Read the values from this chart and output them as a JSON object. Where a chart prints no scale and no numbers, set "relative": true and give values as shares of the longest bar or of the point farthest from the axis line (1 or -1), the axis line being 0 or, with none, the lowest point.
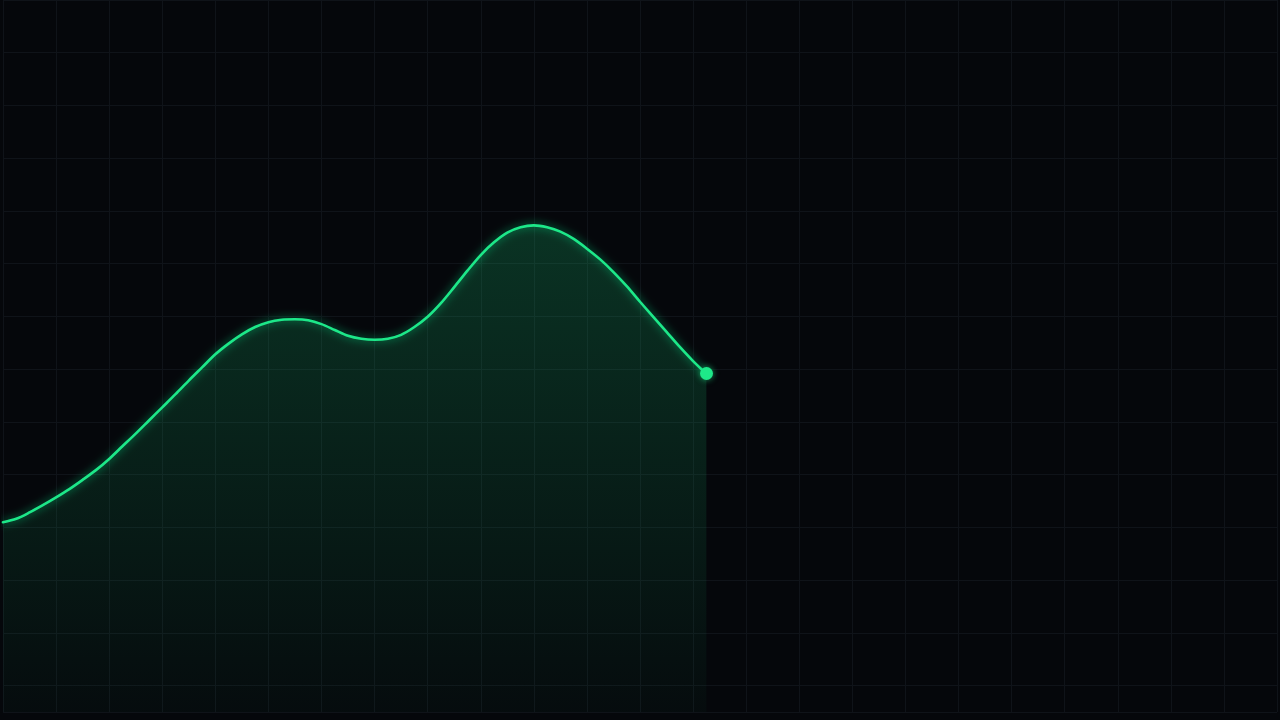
{
  "chart_data": {
    "type": "area",
    "relative": true,
    "grid": true,
    "color": "#1ee889",
    "categories": [
      null,
      null,
      null,
      null,
      null,
      null,
      null,
      null,
      null,
      null,
      null,
      null,
      null,
      null,
      null,
      null,
      null,
      null,
      null,
      null,
      null,
      null,
      null,
      null,
      null,
      null,
      null,
      null,
      null,
      null,
      null,
      null,
      null,
      null,
      null,
      null,
      null,
      null,
      null,
      null,
      null,
      null,
      null,
      null,
      null,
      null,
      null,
      null,
      null,
      null,
      null,
      null,
      null,
      null,
      null,
      null,
      null,
      null,
      null,
      null,
      null,
      null,
      null,
      null,
      null,
      null,
      null,
      null,
      null,
      null,
      null,
      null,
      null,
      null,
      null,
      null,
      null,
      null,
      null,
      null,
      null,
      null,
      null,
      null,
      null,
      null,
      null,
      null,
      null,
      null,
      null,
      null,
      null,
      null,
      null,
      null,
      null
    ],
    "values": [
      0.39,
      0.397,
      0.41,
      0.425,
      0.441,
      0.458,
      0.477,
      0.497,
      0.52,
      0.546,
      0.572,
      0.599,
      0.626,
      0.653,
      0.681,
      0.708,
      0.735,
      0.757,
      0.776,
      0.791,
      0.801,
      0.806,
      0.807,
      0.805,
      0.797,
      0.785,
      0.773,
      0.767,
      0.765,
      0.767,
      0.775,
      0.791,
      0.812,
      0.84,
      0.873,
      0.907,
      0.939,
      0.965,
      0.985,
      0.996,
      1,
      0.996,
      0.987,
      0.972,
      0.952,
      0.93,
      0.904,
      0.875,
      0.843,
      0.812,
      0.781,
      0.75,
      0.721,
      0.695,
      null,
      null,
      null,
      null,
      null,
      null,
      null,
      null,
      null,
      null,
      null,
      null,
      null,
      null,
      null,
      null,
      null,
      null,
      null,
      null,
      null,
      null,
      null,
      null,
      null,
      null,
      null,
      null,
      null,
      null,
      null,
      null,
      null,
      null,
      null,
      null,
      null,
      null,
      null,
      null,
      null,
      null,
      null
    ]
  }
}
